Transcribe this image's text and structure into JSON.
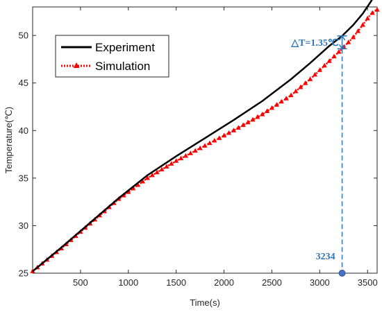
{
  "chart_data": {
    "type": "line",
    "title": "",
    "xlabel": "Time(s)",
    "ylabel": "Temperature(℃)",
    "xlim": [
      0,
      3600
    ],
    "ylim": [
      25,
      53
    ],
    "xticks": [
      500,
      1000,
      1500,
      2000,
      2500,
      3000,
      3500
    ],
    "yticks": [
      25,
      30,
      35,
      40,
      45,
      50
    ],
    "grid": false,
    "legend_position": "top-left",
    "series": [
      {
        "name": "Experiment",
        "color": "#000000",
        "style": "solid",
        "x": [
          0,
          300,
          600,
          900,
          1200,
          1500,
          1800,
          2100,
          2400,
          2700,
          2900,
          3100,
          3234,
          3350,
          3450,
          3530,
          3580,
          3600
        ],
        "y": [
          25.2,
          27.7,
          30.3,
          32.9,
          35.3,
          37.3,
          39.2,
          41.1,
          43.1,
          45.4,
          47.1,
          48.9,
          49.95,
          51.1,
          52.3,
          53.5,
          54.3,
          54.5
        ]
      },
      {
        "name": "Simulation",
        "color": "#ff0000",
        "style": "dotted-triangle",
        "x": [
          0,
          300,
          600,
          900,
          1200,
          1500,
          1800,
          2100,
          2400,
          2700,
          2900,
          3100,
          3234,
          3350,
          3450,
          3530,
          3580,
          3600
        ],
        "y": [
          25.2,
          27.6,
          30.2,
          32.8,
          35.0,
          36.8,
          38.4,
          40.0,
          41.7,
          43.7,
          45.4,
          47.3,
          48.6,
          49.8,
          51.1,
          52.2,
          52.6,
          52.7
        ]
      }
    ],
    "annotations": {
      "delta_label": "△T=1.35℃",
      "marker_x": 3234,
      "marker_label": "3234",
      "color": "#2e75b6"
    }
  }
}
